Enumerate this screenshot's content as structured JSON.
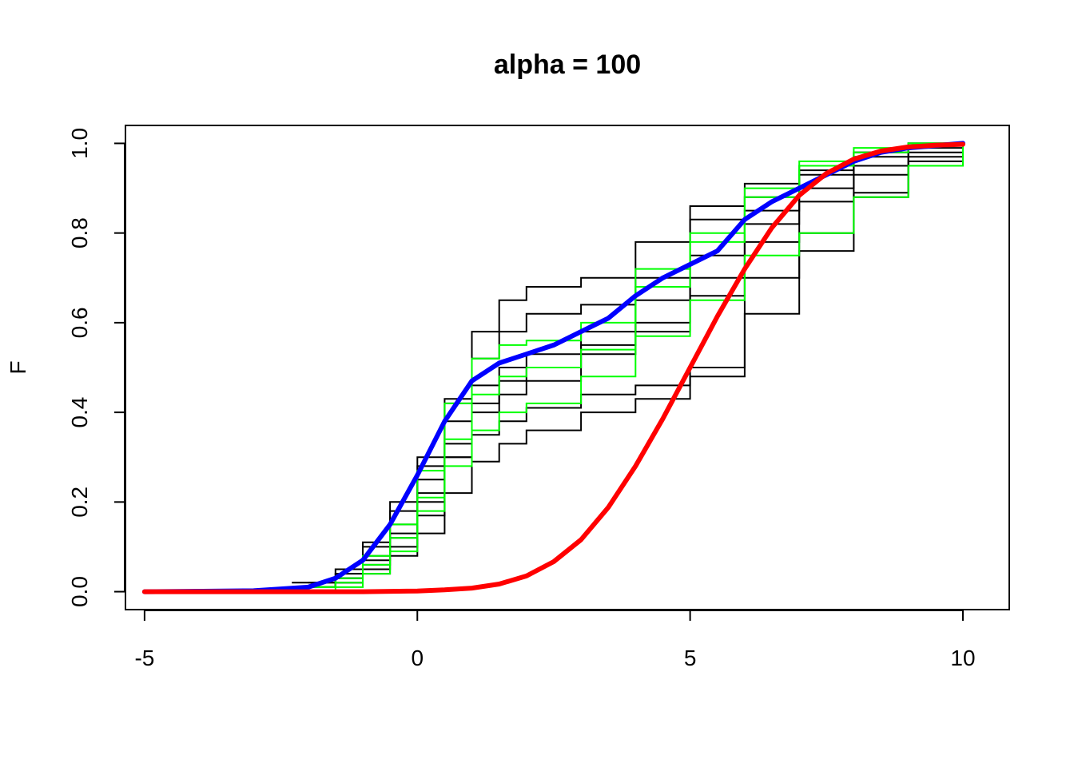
{
  "chart_data": {
    "type": "line",
    "title": "alpha = 100",
    "xlabel": "",
    "ylabel": "F",
    "xlim": [
      -5.35,
      10.85
    ],
    "ylim": [
      -0.04,
      1.04
    ],
    "xticks": [
      -5,
      0,
      5,
      10
    ],
    "xtick_labels": [
      "-5",
      "0",
      "5",
      "10"
    ],
    "yticks": [
      0,
      0.2,
      0.4,
      0.6,
      0.8,
      1
    ],
    "ytick_labels": [
      "0.0",
      "0.2",
      "0.4",
      "0.6",
      "0.8",
      "1.0"
    ],
    "grid": false,
    "legend": "none",
    "colors": {
      "sample": "#000000",
      "alt_sample": "#00ff00",
      "posterior_mean": "#0000ff",
      "prior": "#ff0000"
    },
    "samples": [
      {
        "color": "#000000",
        "x": [
          -2.3,
          -1.5,
          -1.0,
          -0.5,
          0.0,
          0.5,
          1.0,
          1.5,
          2.0,
          3.0,
          4.0,
          5.0,
          6.0,
          7.0,
          8.0,
          9.0,
          10.0
        ],
        "y": [
          0.02,
          0.04,
          0.1,
          0.18,
          0.28,
          0.42,
          0.58,
          0.65,
          0.68,
          0.7,
          0.78,
          0.83,
          0.88,
          0.93,
          0.97,
          0.99,
          1.0
        ]
      },
      {
        "color": "#000000",
        "x": [
          -2.0,
          -1.5,
          -1.0,
          -0.5,
          0.0,
          0.5,
          1.0,
          1.5,
          2.0,
          3.0,
          4.0,
          5.0,
          6.0,
          7.0,
          8.0,
          9.0,
          10.0
        ],
        "y": [
          0.02,
          0.05,
          0.11,
          0.2,
          0.3,
          0.43,
          0.52,
          0.58,
          0.62,
          0.64,
          0.7,
          0.86,
          0.91,
          0.95,
          0.98,
          1.0,
          1.0
        ]
      },
      {
        "color": "#000000",
        "x": [
          -2.0,
          -1.5,
          -1.0,
          -0.5,
          0.0,
          0.5,
          1.0,
          1.5,
          2.0,
          3.0,
          4.0,
          5.0,
          6.0,
          7.0,
          8.0,
          9.0,
          10.0
        ],
        "y": [
          0.01,
          0.03,
          0.08,
          0.15,
          0.25,
          0.38,
          0.46,
          0.5,
          0.53,
          0.58,
          0.65,
          0.75,
          0.85,
          0.94,
          0.98,
          1.0,
          1.0
        ]
      },
      {
        "color": "#000000",
        "x": [
          -2.0,
          -1.5,
          -1.0,
          -0.5,
          0.0,
          0.5,
          1.0,
          1.5,
          2.0,
          3.0,
          4.0,
          5.0,
          6.0,
          7.0,
          8.0,
          9.0,
          10.0
        ],
        "y": [
          0.01,
          0.02,
          0.05,
          0.1,
          0.17,
          0.3,
          0.42,
          0.47,
          0.5,
          0.55,
          0.6,
          0.7,
          0.82,
          0.9,
          0.95,
          0.98,
          1.0
        ]
      },
      {
        "color": "#000000",
        "x": [
          -2.0,
          -1.5,
          -1.0,
          -0.5,
          0.0,
          0.5,
          1.0,
          1.5,
          2.0,
          3.0,
          4.0,
          5.0,
          6.0,
          7.0,
          8.0,
          9.0,
          10.0
        ],
        "y": [
          0.01,
          0.03,
          0.07,
          0.13,
          0.22,
          0.33,
          0.4,
          0.44,
          0.47,
          0.53,
          0.58,
          0.66,
          0.78,
          0.87,
          0.93,
          0.97,
          1.0
        ]
      },
      {
        "color": "#000000",
        "x": [
          -2.0,
          -1.5,
          -1.0,
          -0.5,
          0.0,
          0.5,
          1.0,
          1.5,
          2.0,
          3.0,
          4.0,
          5.0,
          6.0,
          7.0,
          8.0,
          9.0,
          10.0
        ],
        "y": [
          0.01,
          0.02,
          0.04,
          0.08,
          0.13,
          0.22,
          0.29,
          0.33,
          0.36,
          0.4,
          0.43,
          0.48,
          0.7,
          0.8,
          0.89,
          0.95,
          1.0
        ]
      },
      {
        "color": "#000000",
        "x": [
          -2.0,
          -1.5,
          -1.0,
          -0.5,
          0.0,
          0.5,
          1.0,
          1.5,
          2.0,
          3.0,
          4.0,
          5.0,
          6.0,
          7.0,
          8.0,
          9.0,
          10.0
        ],
        "y": [
          0.01,
          0.03,
          0.06,
          0.12,
          0.2,
          0.3,
          0.35,
          0.38,
          0.41,
          0.44,
          0.46,
          0.5,
          0.62,
          0.76,
          0.88,
          0.96,
          1.0
        ]
      },
      {
        "color": "#00ff00",
        "x": [
          -2.0,
          -1.5,
          -1.0,
          -0.5,
          0.0,
          0.5,
          1.0,
          1.5,
          2.0,
          3.0,
          4.0,
          5.0,
          6.0,
          7.0,
          8.0,
          9.0,
          10.0
        ],
        "y": [
          0.01,
          0.03,
          0.08,
          0.15,
          0.27,
          0.42,
          0.52,
          0.55,
          0.56,
          0.6,
          0.72,
          0.78,
          0.88,
          0.95,
          0.98,
          1.0,
          1.0
        ]
      },
      {
        "color": "#00ff00",
        "x": [
          -2.0,
          -1.5,
          -1.0,
          -0.5,
          0.0,
          0.5,
          1.0,
          1.5,
          2.0,
          3.0,
          4.0,
          5.0,
          6.0,
          7.0,
          8.0,
          9.0,
          10.0
        ],
        "y": [
          0.0,
          0.01,
          0.04,
          0.09,
          0.18,
          0.28,
          0.36,
          0.4,
          0.42,
          0.48,
          0.57,
          0.65,
          0.75,
          0.8,
          0.88,
          0.95,
          1.0
        ]
      },
      {
        "color": "#00ff00",
        "x": [
          -2.0,
          -1.5,
          -1.0,
          -0.5,
          0.0,
          0.5,
          1.0,
          1.5,
          2.0,
          3.0,
          4.0,
          5.0,
          6.0,
          7.0,
          8.0,
          9.0,
          10.0
        ],
        "y": [
          0.01,
          0.02,
          0.06,
          0.12,
          0.21,
          0.34,
          0.44,
          0.48,
          0.5,
          0.54,
          0.68,
          0.8,
          0.9,
          0.96,
          0.99,
          1.0,
          1.0
        ]
      }
    ],
    "series": [
      {
        "color": "#0000ff",
        "x": [
          -5.0,
          -3.0,
          -2.0,
          -1.5,
          -1.0,
          -0.5,
          0.0,
          0.5,
          1.0,
          1.5,
          2.0,
          2.5,
          3.0,
          3.5,
          4.0,
          4.5,
          5.0,
          5.5,
          6.0,
          6.5,
          7.0,
          7.5,
          8.0,
          8.5,
          9.0,
          10.0
        ],
        "y": [
          0.0,
          0.002,
          0.01,
          0.03,
          0.07,
          0.15,
          0.26,
          0.38,
          0.47,
          0.51,
          0.53,
          0.55,
          0.58,
          0.61,
          0.66,
          0.7,
          0.73,
          0.76,
          0.83,
          0.87,
          0.9,
          0.93,
          0.96,
          0.98,
          0.99,
          1.0
        ]
      },
      {
        "color": "#ff0000",
        "x": [
          -5.0,
          -4.0,
          -3.0,
          -2.0,
          -1.0,
          0.0,
          0.5,
          1.0,
          1.5,
          2.0,
          2.5,
          3.0,
          3.5,
          4.0,
          4.5,
          5.0,
          5.5,
          6.0,
          6.5,
          7.0,
          7.5,
          8.0,
          8.5,
          9.0,
          9.5,
          10.0
        ],
        "y": [
          0.0,
          0.0,
          0.0,
          0.0,
          0.0,
          0.0015,
          0.004,
          0.008,
          0.017,
          0.035,
          0.067,
          0.116,
          0.188,
          0.28,
          0.386,
          0.5,
          0.614,
          0.72,
          0.812,
          0.884,
          0.933,
          0.965,
          0.983,
          0.992,
          0.996,
          0.998
        ]
      }
    ]
  }
}
